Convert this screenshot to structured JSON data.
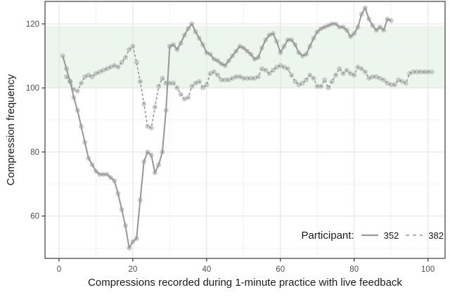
{
  "chart_data": {
    "type": "line",
    "title": "",
    "xlabel": "Compressions recorded during 1-minute practice with live feedback",
    "ylabel": "Compression frequency",
    "x_ticks": [
      0,
      20,
      40,
      60,
      80,
      100
    ],
    "y_ticks": [
      60,
      80,
      100,
      120
    ],
    "x_minor_gridlines": [
      10,
      30,
      50,
      70,
      90
    ],
    "y_minor_gridlines": [
      50,
      70,
      90,
      110
    ],
    "xlim": [
      -3.8,
      104.6
    ],
    "ylim": [
      46.8,
      127
    ],
    "grid": true,
    "target_band": {
      "from": 100,
      "to": 120
    },
    "legend": {
      "title": "Participant:",
      "position": "inside-bottom-right"
    },
    "series": [
      {
        "name": "352",
        "line_style": "solid",
        "x_start": 1,
        "x_step": 1,
        "values": [
          110,
          106,
          102,
          97,
          93,
          88,
          83,
          78,
          76,
          74,
          73,
          73,
          73,
          72,
          71,
          67,
          62,
          57,
          50,
          52,
          53,
          65,
          77,
          80,
          79,
          73.5,
          76,
          80,
          93,
          113,
          113.5,
          112,
          114,
          116.5,
          118.5,
          120,
          117.5,
          115.5,
          113.5,
          111,
          110.5,
          109,
          108.5,
          107.5,
          107,
          108.5,
          110,
          111.5,
          113,
          112.5,
          111.5,
          110.5,
          109,
          109.5,
          112.5,
          115,
          116.5,
          117,
          114.5,
          111,
          113,
          115,
          115,
          113.5,
          111,
          110,
          110.5,
          113,
          115.5,
          117.5,
          118.5,
          119,
          119.5,
          120,
          120,
          119,
          119,
          118,
          116,
          117,
          119,
          123,
          125,
          121.5,
          119.5,
          118,
          119,
          118,
          121.5,
          121
        ]
      },
      {
        "name": "382",
        "line_style": "dashed",
        "x_start": 2,
        "x_step": 1,
        "values": [
          103.5,
          102,
          99.5,
          99,
          101.5,
          103.5,
          104,
          103.5,
          104.5,
          105,
          105.5,
          106,
          106.5,
          107,
          106.5,
          108,
          109.5,
          112,
          113,
          108,
          102,
          95,
          88,
          87.5,
          94,
          100.5,
          103,
          101.5,
          101.5,
          101.5,
          100,
          98,
          96.5,
          97,
          100.5,
          101.5,
          102,
          100,
          101,
          104.5,
          105,
          104,
          102.5,
          102.5,
          102.5,
          103,
          103.5,
          103.5,
          103,
          103,
          103,
          103,
          103.5,
          106,
          105.5,
          104.5,
          105.5,
          106.5,
          107,
          106.5,
          106,
          104,
          102,
          101,
          101.5,
          102.5,
          104,
          103,
          100.5,
          100.5,
          102.5,
          100,
          102,
          104,
          106,
          104.5,
          105.5,
          104.5,
          104,
          106.5,
          106,
          105,
          103,
          103.5,
          103.5,
          103,
          102.5,
          101.5,
          101,
          101,
          102.5,
          102,
          101.5,
          104.5,
          105,
          105,
          105,
          105,
          105,
          105
        ]
      }
    ],
    "colors": {
      "line": "#9a9a9a",
      "marker_fill": "#969696",
      "band": "#ecf6ec",
      "grid_major": "#e4e4e4",
      "grid_minor": "#f2f2f2",
      "panel_border": "#3c3c3c",
      "tick_mark": "#333333",
      "tick_label": "#4d4d4d",
      "title_text": "#1a1a1a"
    }
  }
}
